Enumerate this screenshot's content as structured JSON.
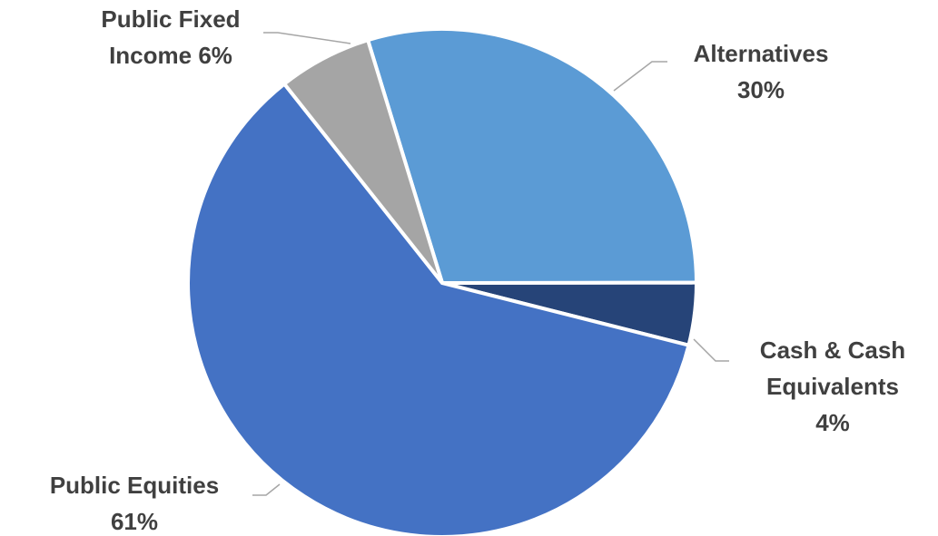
{
  "chart_data": {
    "type": "pie",
    "title": "",
    "slices": [
      {
        "name": "Alternatives",
        "value": 30,
        "label_lines": [
          "Alternatives",
          "30%"
        ],
        "color": "#5b9bd5"
      },
      {
        "name": "Cash & Cash Equivalents",
        "value": 4,
        "label_lines": [
          "Cash & Cash",
          "Equivalents",
          "4%"
        ],
        "color": "#264478"
      },
      {
        "name": "Public Equities",
        "value": 61,
        "label_lines": [
          "Public Equities",
          "61%"
        ],
        "color": "#4472c4"
      },
      {
        "name": "Public Fixed Income",
        "value": 6,
        "label_lines": [
          "Public Fixed",
          "Income 6%"
        ],
        "color": "#a5a5a5"
      }
    ],
    "legend": "none"
  }
}
